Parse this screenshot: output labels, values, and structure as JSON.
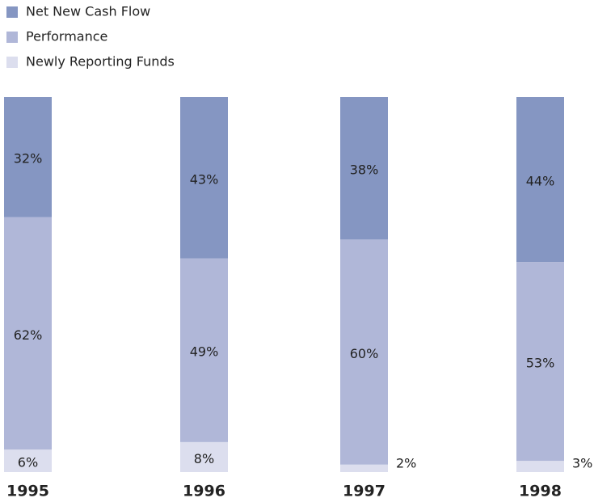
{
  "chart_data": {
    "type": "stacked_bar",
    "categories": [
      "1995",
      "1996",
      "1997",
      "1998"
    ],
    "series": [
      {
        "name": "Newly Reporting Funds",
        "color": "#dcdeee",
        "values": [
          6,
          8,
          2,
          3
        ],
        "value_labels": [
          "6%",
          "8%",
          "2%",
          "3%"
        ]
      },
      {
        "name": "Performance",
        "color": "#b0b7d8",
        "values": [
          62,
          49,
          60,
          53
        ],
        "value_labels": [
          "62%",
          "49%",
          "60%",
          "53%"
        ]
      },
      {
        "name": "Net New Cash Flow",
        "color": "#8596c2",
        "values": [
          32,
          43,
          38,
          44
        ],
        "value_labels": [
          "32%",
          "43%",
          "38%",
          "44%"
        ]
      }
    ],
    "legend": "top-left",
    "ylim": [
      0,
      100
    ]
  }
}
